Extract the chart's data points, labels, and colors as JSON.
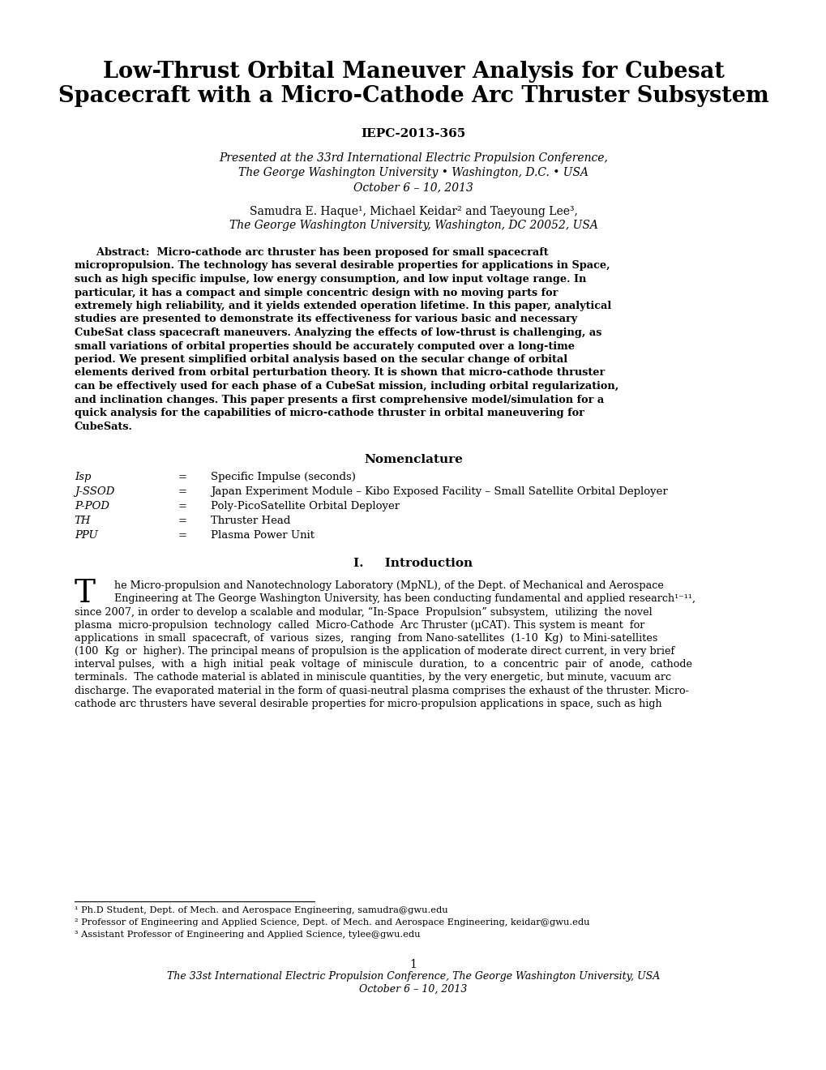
{
  "bg_color": "#ffffff",
  "title_line1": "Low-Thrust Orbital Maneuver Analysis for Cubesat",
  "title_line2": "Spacecraft with a Micro-Cathode Arc Thruster Subsystem",
  "paper_id": "IEPC-2013-365",
  "presented_line1": "Presented at the 33rd International Electric Propulsion Conference,",
  "presented_line2": "The George Washington University • Washington, D.C. • USA",
  "presented_line3": "October 6 – 10, 2013",
  "authors_line1": "Samudra E. Haque¹, Michael Keidar² and Taeyoung Lee³,",
  "authors_line2": "The George Washington University, Washington, DC 20052, USA",
  "abstract_lines": [
    "      Abstract:  Micro-cathode arc thruster has been proposed for small spacecraft",
    "micropropulsion. The technology has several desirable properties for applications in Space,",
    "such as high specific impulse, low energy consumption, and low input voltage range. In",
    "particular, it has a compact and simple concentric design with no moving parts for",
    "extremely high reliability, and it yields extended operation lifetime. In this paper, analytical",
    "studies are presented to demonstrate its effectiveness for various basic and necessary",
    "CubeSat class spacecraft maneuvers. Analyzing the effects of low-thrust is challenging, as",
    "small variations of orbital properties should be accurately computed over a long-time",
    "period. We present simplified orbital analysis based on the secular change of orbital",
    "elements derived from orbital perturbation theory. It is shown that micro-cathode thruster",
    "can be effectively used for each phase of a CubeSat mission, including orbital regularization,",
    "and inclination changes. This paper presents a first comprehensive model/simulation for a",
    "quick analysis for the capabilities of micro-cathode thruster in orbital maneuvering for",
    "CubeSats."
  ],
  "nomenclature_title": "Nomenclature",
  "nom_items": [
    [
      "Isp",
      "=",
      "Specific Impulse (seconds)"
    ],
    [
      "J-SSOD",
      "=",
      "Japan Experiment Module – Kibo Exposed Facility – Small Satellite Orbital Deployer"
    ],
    [
      "P-POD",
      "=",
      "Poly-PicoSatellite Orbital Deployer"
    ],
    [
      "TH",
      "=",
      "Thruster Head"
    ],
    [
      "PPU",
      "=",
      "Plasma Power Unit"
    ]
  ],
  "intro_title": "I.     Introduction",
  "intro_dropcap": "T",
  "intro_lines": [
    "he Micro-propulsion and Nanotechnology Laboratory (MpNL), of the Dept. of Mechanical and Aerospace",
    "Engineering at The George Washington University, has been conducting fundamental and applied research¹⁻¹¹,",
    "since 2007, in order to develop a scalable and modular, “In-Space  Propulsion” subsystem,  utilizing  the novel",
    "plasma  micro-propulsion  technology  called  Micro-Cathode  Arc Thruster (μCAT). This system is meant  for",
    "applications  in small  spacecraft, of  various  sizes,  ranging  from Nano-satellites  (1-10  Kg)  to Mini-satellites",
    "(100  Kg  or  higher). The principal means of propulsion is the application of moderate direct current, in very brief",
    "interval pulses,  with  a  high  initial  peak  voltage  of  miniscule  duration,  to  a  concentric  pair  of  anode,  cathode",
    "terminals.  The cathode material is ablated in miniscule quantities, by the very energetic, but minute, vacuum arc",
    "discharge. The evaporated material in the form of quasi-neutral plasma comprises the exhaust of the thruster. Micro-",
    "cathode arc thrusters have several desirable properties for micro-propulsion applications in space, such as high"
  ],
  "footnote1": "¹ Ph.D Student, Dept. of Mech. and Aerospace Engineering, samudra@gwu.edu",
  "footnote2": "² Professor of Engineering and Applied Science, Dept. of Mech. and Aerospace Engineering, keidar@gwu.edu",
  "footnote3": "³ Assistant Professor of Engineering and Applied Science, tylee@gwu.edu",
  "page_number": "1",
  "footer_line1": "The 33st International Electric Propulsion Conference, The George Washington University, USA",
  "footer_line2": "October 6 – 10, 2013"
}
